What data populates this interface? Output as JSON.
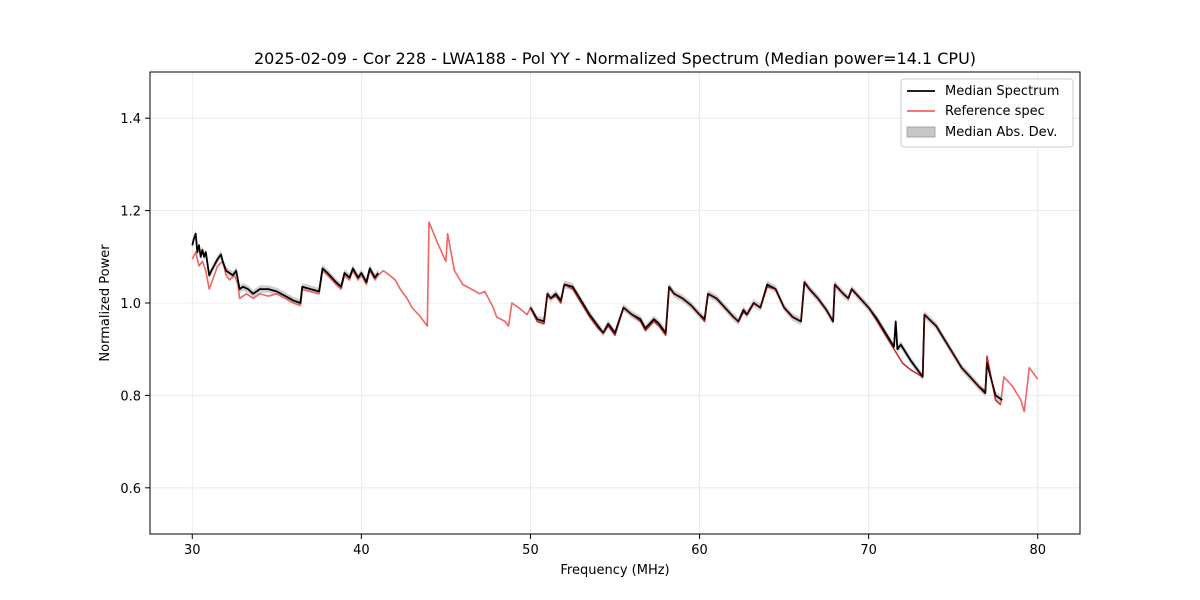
{
  "chart_data": {
    "type": "line",
    "title": "2025-02-09 - Cor 228 - LWA188 - Pol YY - Normalized Spectrum (Median power=14.1 CPU)",
    "xlabel": "Frequency (MHz)",
    "ylabel": "Normalized Power",
    "xlim": [
      27.5,
      82.5
    ],
    "ylim": [
      0.5,
      1.5
    ],
    "xticks": [
      30,
      40,
      50,
      60,
      70,
      80
    ],
    "yticks": [
      0.6,
      0.8,
      1.0,
      1.2,
      1.4
    ],
    "xtick_labels": [
      "30",
      "40",
      "50",
      "60",
      "70",
      "80"
    ],
    "ytick_labels": [
      "0.6",
      "0.8",
      "1.0",
      "1.2",
      "1.4"
    ],
    "grid": true,
    "legend_position": "top-right",
    "legend": [
      {
        "label": "Median Spectrum",
        "kind": "line"
      },
      {
        "label": "Reference spec",
        "kind": "line"
      },
      {
        "label": "Median Abs. Dev.",
        "kind": "patch"
      }
    ],
    "colors": {
      "median": "#000000",
      "reference": "#f06464",
      "mad": "#c8c8c8",
      "overlap": "#8b0000"
    },
    "series": [
      {
        "name": "Reference spec",
        "x": [
          30.0,
          30.2,
          30.4,
          30.6,
          30.8,
          31.0,
          31.2,
          31.5,
          31.8,
          32.0,
          32.2,
          32.5,
          32.7,
          32.8,
          33.2,
          33.6,
          34.0,
          34.5,
          35.0,
          35.5,
          36.0,
          36.4,
          36.5,
          37.0,
          37.5,
          37.7,
          38.0,
          38.5,
          38.8,
          39.0,
          39.3,
          39.5,
          39.8,
          40.0,
          40.3,
          40.5,
          40.8,
          41.0,
          41.3,
          41.5,
          42.0,
          42.3,
          42.7,
          43.0,
          43.5,
          43.9,
          44.0,
          44.5,
          45.0,
          45.1,
          45.5,
          46.0,
          46.5,
          47.0,
          47.3,
          47.8,
          48.0,
          48.5,
          48.7,
          48.9,
          49.3,
          49.8,
          50.0,
          50.4,
          50.8,
          51.0,
          51.2,
          51.5,
          51.8,
          52.0,
          52.5,
          53.0,
          53.5,
          54.0,
          54.3,
          54.6,
          54.8,
          55.0,
          55.5,
          56.0,
          56.5,
          56.8,
          57.3,
          57.6,
          58.0,
          58.2,
          58.5,
          59.0,
          59.5,
          60.0,
          60.3,
          60.5,
          61.0,
          61.5,
          62.0,
          62.3,
          62.6,
          62.8,
          63.2,
          63.6,
          64.0,
          64.5,
          65.0,
          65.5,
          66.0,
          66.2,
          66.5,
          67.0,
          67.5,
          67.9,
          68.0,
          68.5,
          68.8,
          69.0,
          69.5,
          70.0,
          70.5,
          71.0,
          71.5,
          72.0,
          72.5,
          73.2,
          73.3,
          74.0,
          74.5,
          75.0,
          75.5,
          76.0,
          76.5,
          76.9,
          77.0,
          77.5,
          77.8,
          78.0,
          78.5,
          79.0,
          79.2,
          79.5,
          80.0
        ],
        "values": [
          1.095,
          1.11,
          1.08,
          1.09,
          1.07,
          1.03,
          1.05,
          1.08,
          1.09,
          1.06,
          1.05,
          1.06,
          1.04,
          1.01,
          1.02,
          1.01,
          1.02,
          1.015,
          1.02,
          1.01,
          1.0,
          0.995,
          1.03,
          1.025,
          1.02,
          1.07,
          1.06,
          1.04,
          1.03,
          1.06,
          1.05,
          1.07,
          1.05,
          1.06,
          1.04,
          1.07,
          1.05,
          1.06,
          1.07,
          1.065,
          1.05,
          1.03,
          1.01,
          0.99,
          0.97,
          0.95,
          1.175,
          1.13,
          1.09,
          1.15,
          1.07,
          1.04,
          1.03,
          1.02,
          1.025,
          0.99,
          0.97,
          0.96,
          0.95,
          1.0,
          0.99,
          0.975,
          0.99,
          0.96,
          0.955,
          1.02,
          1.01,
          1.015,
          1.0,
          1.04,
          1.03,
          1.0,
          0.97,
          0.945,
          0.935,
          0.95,
          0.94,
          0.93,
          0.99,
          0.975,
          0.96,
          0.94,
          0.96,
          0.95,
          0.93,
          1.035,
          1.02,
          1.01,
          0.995,
          0.975,
          0.96,
          1.02,
          1.01,
          0.99,
          0.97,
          0.96,
          0.98,
          0.975,
          1.0,
          0.99,
          1.035,
          1.03,
          0.99,
          0.97,
          0.96,
          1.045,
          1.03,
          1.01,
          0.985,
          0.96,
          1.04,
          1.02,
          1.01,
          1.03,
          1.01,
          0.99,
          0.96,
          0.93,
          0.9,
          0.87,
          0.855,
          0.84,
          0.975,
          0.95,
          0.92,
          0.89,
          0.86,
          0.84,
          0.82,
          0.81,
          0.885,
          0.79,
          0.78,
          0.84,
          0.82,
          0.79,
          0.765,
          0.86,
          0.835
        ]
      },
      {
        "name": "Median Spectrum",
        "x": [
          30.0,
          30.1,
          30.2,
          30.3,
          30.4,
          30.5,
          30.6,
          30.7,
          30.8,
          31.0,
          31.2,
          31.5,
          31.7,
          31.8,
          32.0,
          32.2,
          32.4,
          32.6,
          32.8,
          33.0,
          33.3,
          33.6,
          34.0,
          34.5,
          35.0,
          35.5,
          36.0,
          36.4,
          36.5,
          37.0,
          37.5,
          37.7,
          38.0,
          38.5,
          38.8,
          39.0,
          39.3,
          39.5,
          39.8,
          40.0,
          40.3,
          40.5,
          40.8,
          41.0,
          50.0,
          50.4,
          50.8,
          51.0,
          51.2,
          51.5,
          51.8,
          52.0,
          52.5,
          53.0,
          53.5,
          54.0,
          54.3,
          54.6,
          54.8,
          55.0,
          55.5,
          56.0,
          56.5,
          56.8,
          57.3,
          57.6,
          58.0,
          58.2,
          58.5,
          59.0,
          59.5,
          60.0,
          60.3,
          60.5,
          61.0,
          61.5,
          62.0,
          62.3,
          62.6,
          62.8,
          63.2,
          63.6,
          64.0,
          64.5,
          65.0,
          65.5,
          66.0,
          66.2,
          66.5,
          67.0,
          67.5,
          67.9,
          68.0,
          68.5,
          68.8,
          69.0,
          69.5,
          70.0,
          70.5,
          71.0,
          71.5,
          71.6,
          71.7,
          71.9,
          72.5,
          73.2,
          73.3,
          74.0,
          74.5,
          75.0,
          75.5,
          76.0,
          76.5,
          76.9,
          77.0,
          77.5,
          77.9
        ],
        "values": [
          1.125,
          1.14,
          1.15,
          1.11,
          1.125,
          1.1,
          1.115,
          1.1,
          1.11,
          1.06,
          1.075,
          1.095,
          1.105,
          1.09,
          1.07,
          1.065,
          1.06,
          1.07,
          1.03,
          1.035,
          1.03,
          1.02,
          1.03,
          1.03,
          1.025,
          1.015,
          1.005,
          1.0,
          1.035,
          1.03,
          1.025,
          1.075,
          1.065,
          1.045,
          1.035,
          1.065,
          1.055,
          1.075,
          1.055,
          1.065,
          1.045,
          1.075,
          1.055,
          1.065,
          0.99,
          0.965,
          0.96,
          1.02,
          1.01,
          1.02,
          1.005,
          1.04,
          1.035,
          1.005,
          0.975,
          0.95,
          0.935,
          0.955,
          0.945,
          0.935,
          0.99,
          0.975,
          0.965,
          0.945,
          0.965,
          0.955,
          0.935,
          1.035,
          1.02,
          1.01,
          0.995,
          0.975,
          0.965,
          1.02,
          1.01,
          0.99,
          0.97,
          0.96,
          0.985,
          0.975,
          1.0,
          0.99,
          1.04,
          1.03,
          0.99,
          0.97,
          0.96,
          1.045,
          1.03,
          1.01,
          0.985,
          0.96,
          1.04,
          1.02,
          1.01,
          1.03,
          1.01,
          0.99,
          0.965,
          0.935,
          0.905,
          0.96,
          0.9,
          0.91,
          0.875,
          0.84,
          0.975,
          0.95,
          0.92,
          0.89,
          0.86,
          0.84,
          0.82,
          0.805,
          0.87,
          0.8,
          0.79
        ]
      }
    ]
  }
}
